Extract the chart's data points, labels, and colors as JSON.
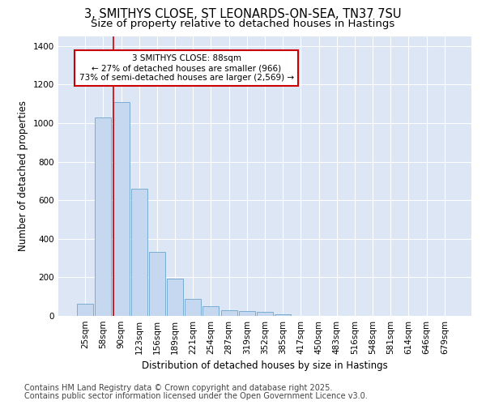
{
  "title_line1": "3, SMITHYS CLOSE, ST LEONARDS-ON-SEA, TN37 7SU",
  "title_line2": "Size of property relative to detached houses in Hastings",
  "xlabel": "Distribution of detached houses by size in Hastings",
  "ylabel": "Number of detached properties",
  "categories": [
    "25sqm",
    "58sqm",
    "90sqm",
    "123sqm",
    "156sqm",
    "189sqm",
    "221sqm",
    "254sqm",
    "287sqm",
    "319sqm",
    "352sqm",
    "385sqm",
    "417sqm",
    "450sqm",
    "483sqm",
    "516sqm",
    "548sqm",
    "581sqm",
    "614sqm",
    "646sqm",
    "679sqm"
  ],
  "values": [
    65,
    1030,
    1110,
    660,
    330,
    195,
    90,
    50,
    30,
    25,
    20,
    10,
    0,
    0,
    0,
    0,
    0,
    0,
    0,
    0,
    0
  ],
  "bar_color": "#c5d8f0",
  "bar_edge_color": "#7aadd4",
  "vline_color": "#cc0000",
  "annotation_text": "3 SMITHYS CLOSE: 88sqm\n← 27% of detached houses are smaller (966)\n73% of semi-detached houses are larger (2,569) →",
  "annotation_box_color": "#ffffff",
  "annotation_box_edge": "#cc0000",
  "ylim": [
    0,
    1450
  ],
  "yticks": [
    0,
    200,
    400,
    600,
    800,
    1000,
    1200,
    1400
  ],
  "background_color": "#dce6f5",
  "grid_color": "#ffffff",
  "fig_background": "#ffffff",
  "footer_line1": "Contains HM Land Registry data © Crown copyright and database right 2025.",
  "footer_line2": "Contains public sector information licensed under the Open Government Licence v3.0.",
  "title_fontsize": 10.5,
  "subtitle_fontsize": 9.5,
  "axis_label_fontsize": 8.5,
  "tick_fontsize": 7.5,
  "annotation_fontsize": 7.5,
  "footer_fontsize": 7
}
